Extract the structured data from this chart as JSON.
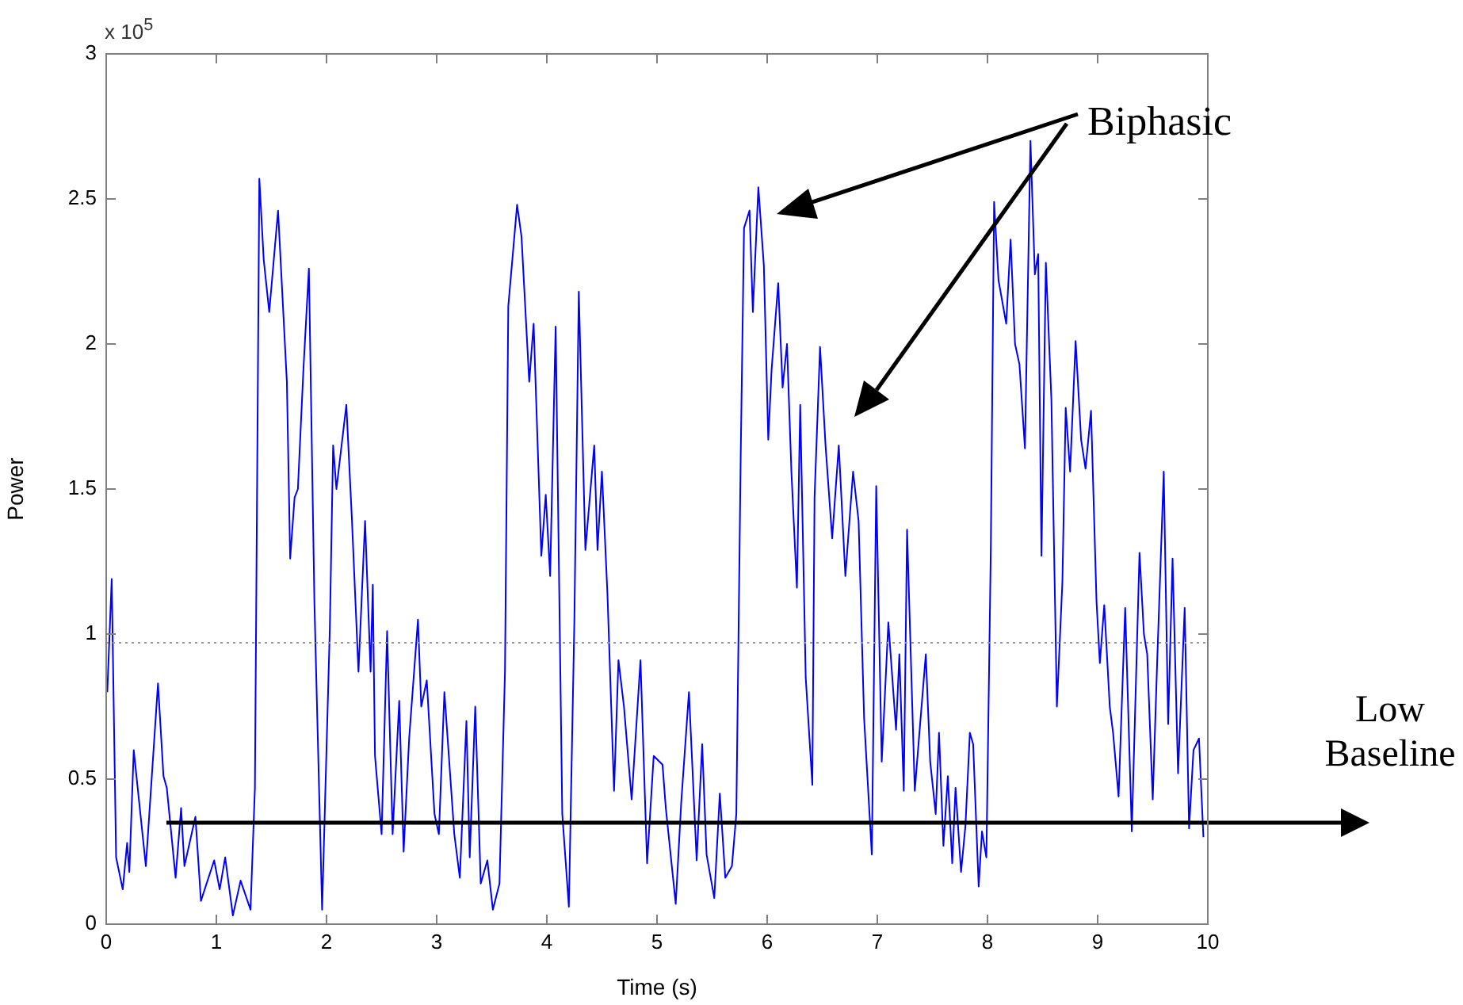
{
  "chart_data": {
    "type": "line",
    "xlabel": "Time (s)",
    "ylabel": "Power",
    "annotations": [
      "Biphasic",
      "x 10$^{5}$"
    ],
    "x": [
      0.01,
      0.05,
      0.09,
      0.15,
      0.19,
      0.21,
      0.25,
      0.36,
      0.47,
      0.52,
      0.55,
      0.63,
      0.68,
      0.71,
      0.81,
      0.86,
      0.98,
      1.03,
      1.08,
      1.15,
      1.22,
      1.31,
      1.35,
      1.39,
      1.43,
      1.48,
      1.56,
      1.64,
      1.67,
      1.71,
      1.74,
      1.79,
      1.84,
      1.89,
      1.96,
      2.03,
      2.06,
      2.09,
      2.18,
      2.23,
      2.29,
      2.35,
      2.4,
      2.42,
      2.44,
      2.5,
      2.55,
      2.6,
      2.66,
      2.7,
      2.75,
      2.83,
      2.86,
      2.91,
      2.98,
      3.02,
      3.07,
      3.16,
      3.21,
      3.27,
      3.3,
      3.35,
      3.4,
      3.46,
      3.51,
      3.57,
      3.62,
      3.65,
      3.73,
      3.77,
      3.84,
      3.88,
      3.95,
      3.99,
      4.03,
      4.08,
      4.14,
      4.2,
      4.25,
      4.29,
      4.35,
      4.43,
      4.46,
      4.5,
      4.55,
      4.61,
      4.65,
      4.7,
      4.77,
      4.85,
      4.91,
      4.97,
      5.05,
      5.08,
      5.17,
      5.22,
      5.29,
      5.36,
      5.41,
      5.45,
      5.52,
      5.57,
      5.62,
      5.68,
      5.72,
      5.76,
      5.79,
      5.84,
      5.87,
      5.92,
      5.97,
      6.01,
      6.04,
      6.1,
      6.14,
      6.18,
      6.22,
      6.27,
      6.3,
      6.35,
      6.41,
      6.43,
      6.48,
      6.53,
      6.59,
      6.65,
      6.71,
      6.78,
      6.83,
      6.88,
      6.95,
      6.99,
      7.04,
      7.1,
      7.17,
      7.2,
      7.24,
      7.27,
      7.34,
      7.38,
      7.44,
      7.48,
      7.53,
      7.56,
      7.6,
      7.64,
      7.68,
      7.71,
      7.76,
      7.8,
      7.84,
      7.87,
      7.92,
      7.95,
      7.99,
      8.03,
      8.06,
      8.1,
      8.17,
      8.21,
      8.25,
      8.29,
      8.34,
      8.39,
      8.43,
      8.46,
      8.49,
      8.53,
      8.58,
      8.63,
      8.68,
      8.71,
      8.75,
      8.8,
      8.85,
      8.89,
      8.94,
      8.99,
      9.02,
      9.06,
      9.11,
      9.14,
      9.19,
      9.25,
      9.31,
      9.38,
      9.42,
      9.45,
      9.5,
      9.54,
      9.6,
      9.64,
      9.68,
      9.73,
      9.79,
      9.83,
      9.87,
      9.92,
      9.96
    ],
    "series": [
      {
        "color": "#0000ff",
        "values": [
          0.8,
          1.19,
          0.23,
          0.12,
          0.28,
          0.18,
          0.6,
          0.2,
          0.83,
          0.51,
          0.47,
          0.16,
          0.4,
          0.2,
          0.37,
          0.08,
          0.22,
          0.12,
          0.23,
          0.03,
          0.15,
          0.05,
          0.47,
          2.57,
          2.29,
          2.11,
          2.46,
          1.87,
          1.26,
          1.47,
          1.5,
          1.91,
          2.26,
          1.11,
          0.05,
          1.02,
          1.65,
          1.5,
          1.79,
          1.4,
          0.87,
          1.39,
          0.87,
          1.17,
          0.58,
          0.31,
          1.01,
          0.31,
          0.77,
          0.25,
          0.64,
          1.05,
          0.75,
          0.84,
          0.38,
          0.31,
          0.8,
          0.31,
          0.16,
          0.7,
          0.23,
          0.75,
          0.14,
          0.22,
          0.05,
          0.14,
          0.87,
          2.13,
          2.48,
          2.37,
          1.87,
          2.07,
          1.27,
          1.48,
          1.2,
          2.06,
          0.38,
          0.06,
          1.05,
          2.18,
          1.29,
          1.65,
          1.29,
          1.56,
          1.14,
          0.46,
          0.91,
          0.75,
          0.43,
          0.91,
          0.21,
          0.58,
          0.55,
          0.4,
          0.07,
          0.42,
          0.8,
          0.22,
          0.62,
          0.24,
          0.09,
          0.45,
          0.16,
          0.2,
          0.38,
          1.62,
          2.4,
          2.46,
          2.11,
          2.54,
          2.27,
          1.67,
          1.91,
          2.21,
          1.85,
          2.0,
          1.56,
          1.16,
          1.79,
          0.85,
          0.48,
          1.47,
          1.99,
          1.65,
          1.33,
          1.65,
          1.2,
          1.56,
          1.39,
          0.71,
          0.24,
          1.51,
          0.56,
          1.04,
          0.67,
          0.93,
          0.46,
          1.36,
          0.46,
          0.65,
          0.93,
          0.56,
          0.38,
          0.66,
          0.27,
          0.51,
          0.21,
          0.47,
          0.18,
          0.34,
          0.66,
          0.62,
          0.13,
          0.32,
          0.23,
          1.29,
          2.49,
          2.22,
          2.07,
          2.36,
          2.0,
          1.93,
          1.64,
          2.7,
          2.24,
          2.31,
          1.27,
          2.28,
          1.81,
          0.75,
          1.18,
          1.78,
          1.56,
          2.01,
          1.67,
          1.57,
          1.77,
          1.11,
          0.9,
          1.1,
          0.75,
          0.66,
          0.44,
          1.09,
          0.32,
          1.28,
          1.0,
          0.93,
          0.43,
          0.9,
          1.56,
          0.69,
          1.26,
          0.52,
          1.09,
          0.33,
          0.6,
          0.64,
          0.3
        ]
      }
    ],
    "xlim": [
      0,
      10
    ],
    "xticks": [
      0,
      1,
      2,
      3,
      4,
      5,
      6,
      7,
      8,
      9,
      10
    ],
    "ylim": [
      0,
      3
    ],
    "yticks": [
      0,
      0.5,
      1,
      1.5,
      2,
      2.5,
      3
    ],
    "ref_lines": [
      {
        "axis": "y",
        "value": 0.97,
        "color": "#999999",
        "line_style": "dotted"
      },
      {
        "axis": "y",
        "value": 0.35,
        "label": "Low Baseline",
        "color": "#000000",
        "line_style": "solid"
      }
    ],
    "grid": false,
    "legend": false,
    "marker": "none",
    "line_style": "solid"
  }
}
